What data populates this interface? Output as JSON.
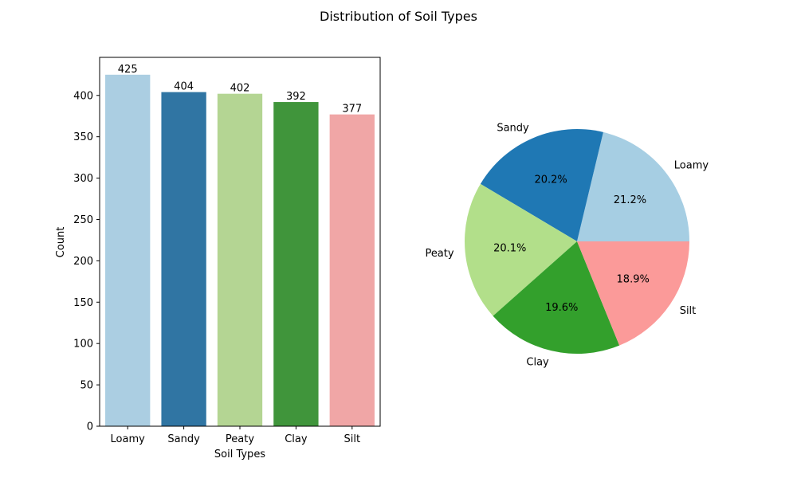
{
  "figure": {
    "suptitle": "Distribution of Soil Types"
  },
  "chart_data": [
    {
      "type": "bar",
      "title": "",
      "xlabel": "Soil Types",
      "ylabel": "Count",
      "categories": [
        "Loamy",
        "Sandy",
        "Peaty",
        "Clay",
        "Silt"
      ],
      "values": [
        425,
        404,
        402,
        392,
        377
      ],
      "value_labels": [
        "425",
        "404",
        "402",
        "392",
        "377"
      ],
      "colors": [
        "#abcee2",
        "#3075a3",
        "#b4d593",
        "#40953b",
        "#f0a6a6"
      ],
      "ylim": [
        0,
        446
      ],
      "yticks": [
        0,
        50,
        100,
        150,
        200,
        250,
        300,
        350,
        400
      ],
      "grid": false
    },
    {
      "type": "pie",
      "title": "",
      "labels": [
        "Loamy",
        "Sandy",
        "Peaty",
        "Clay",
        "Silt"
      ],
      "values": [
        425,
        404,
        402,
        392,
        377
      ],
      "percent_labels": [
        "21.2%",
        "20.2%",
        "20.1%",
        "19.6%",
        "18.9%"
      ],
      "colors": [
        "#a6cee3",
        "#1f78b4",
        "#b2df8a",
        "#33a02c",
        "#fb9a99"
      ],
      "start_angle": 0,
      "direction": "counterclockwise"
    }
  ]
}
